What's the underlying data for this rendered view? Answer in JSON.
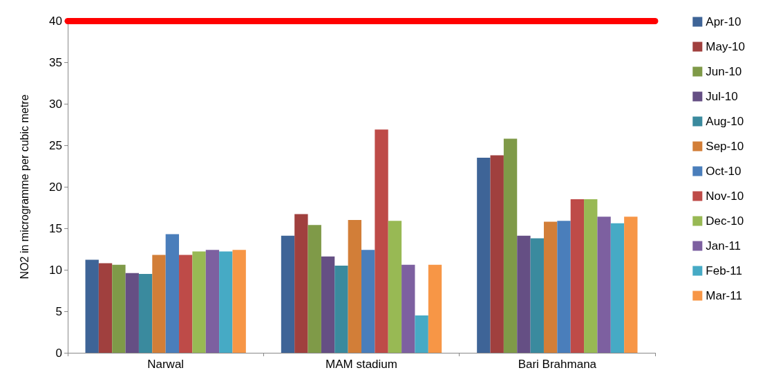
{
  "chart_data": {
    "type": "bar",
    "ylabel": "NO2 in microgramme per cubic metre",
    "categories": [
      "Narwal",
      "MAM stadium",
      "Bari Brahmana"
    ],
    "series": [
      {
        "name": "Apr-10",
        "color": "#3e6497",
        "values": [
          11.2,
          14.1,
          23.5
        ]
      },
      {
        "name": "May-10",
        "color": "#a0403e",
        "values": [
          10.8,
          16.7,
          23.8
        ]
      },
      {
        "name": "Jun-10",
        "color": "#7f9a48",
        "values": [
          10.6,
          15.4,
          25.8
        ]
      },
      {
        "name": "Jul-10",
        "color": "#654f84",
        "values": [
          9.6,
          11.6,
          14.1
        ]
      },
      {
        "name": "Aug-10",
        "color": "#3a8a9e",
        "values": [
          9.5,
          10.5,
          13.8
        ]
      },
      {
        "name": "Sep-10",
        "color": "#d27e38",
        "values": [
          11.8,
          16.0,
          15.8
        ]
      },
      {
        "name": "Oct-10",
        "color": "#4a7ebb",
        "values": [
          14.3,
          12.4,
          15.9
        ]
      },
      {
        "name": "Nov-10",
        "color": "#be4b48",
        "values": [
          11.8,
          26.9,
          18.5
        ]
      },
      {
        "name": "Dec-10",
        "color": "#98b954",
        "values": [
          12.2,
          15.9,
          18.5
        ]
      },
      {
        "name": "Jan-11",
        "color": "#7d60a0",
        "values": [
          12.4,
          10.6,
          16.4
        ]
      },
      {
        "name": "Feb-11",
        "color": "#46aac5",
        "values": [
          12.2,
          4.5,
          15.6
        ]
      },
      {
        "name": "Mar-11",
        "color": "#f79646",
        "values": [
          12.4,
          10.6,
          16.4
        ]
      }
    ],
    "ylim": [
      0,
      40
    ],
    "yticks": [
      0,
      5,
      10,
      15,
      20,
      25,
      30,
      35,
      40
    ],
    "grid": false,
    "legend": "right",
    "ref_lines": [
      {
        "axis": "y",
        "value": 40,
        "color": "#ff0000"
      }
    ]
  }
}
